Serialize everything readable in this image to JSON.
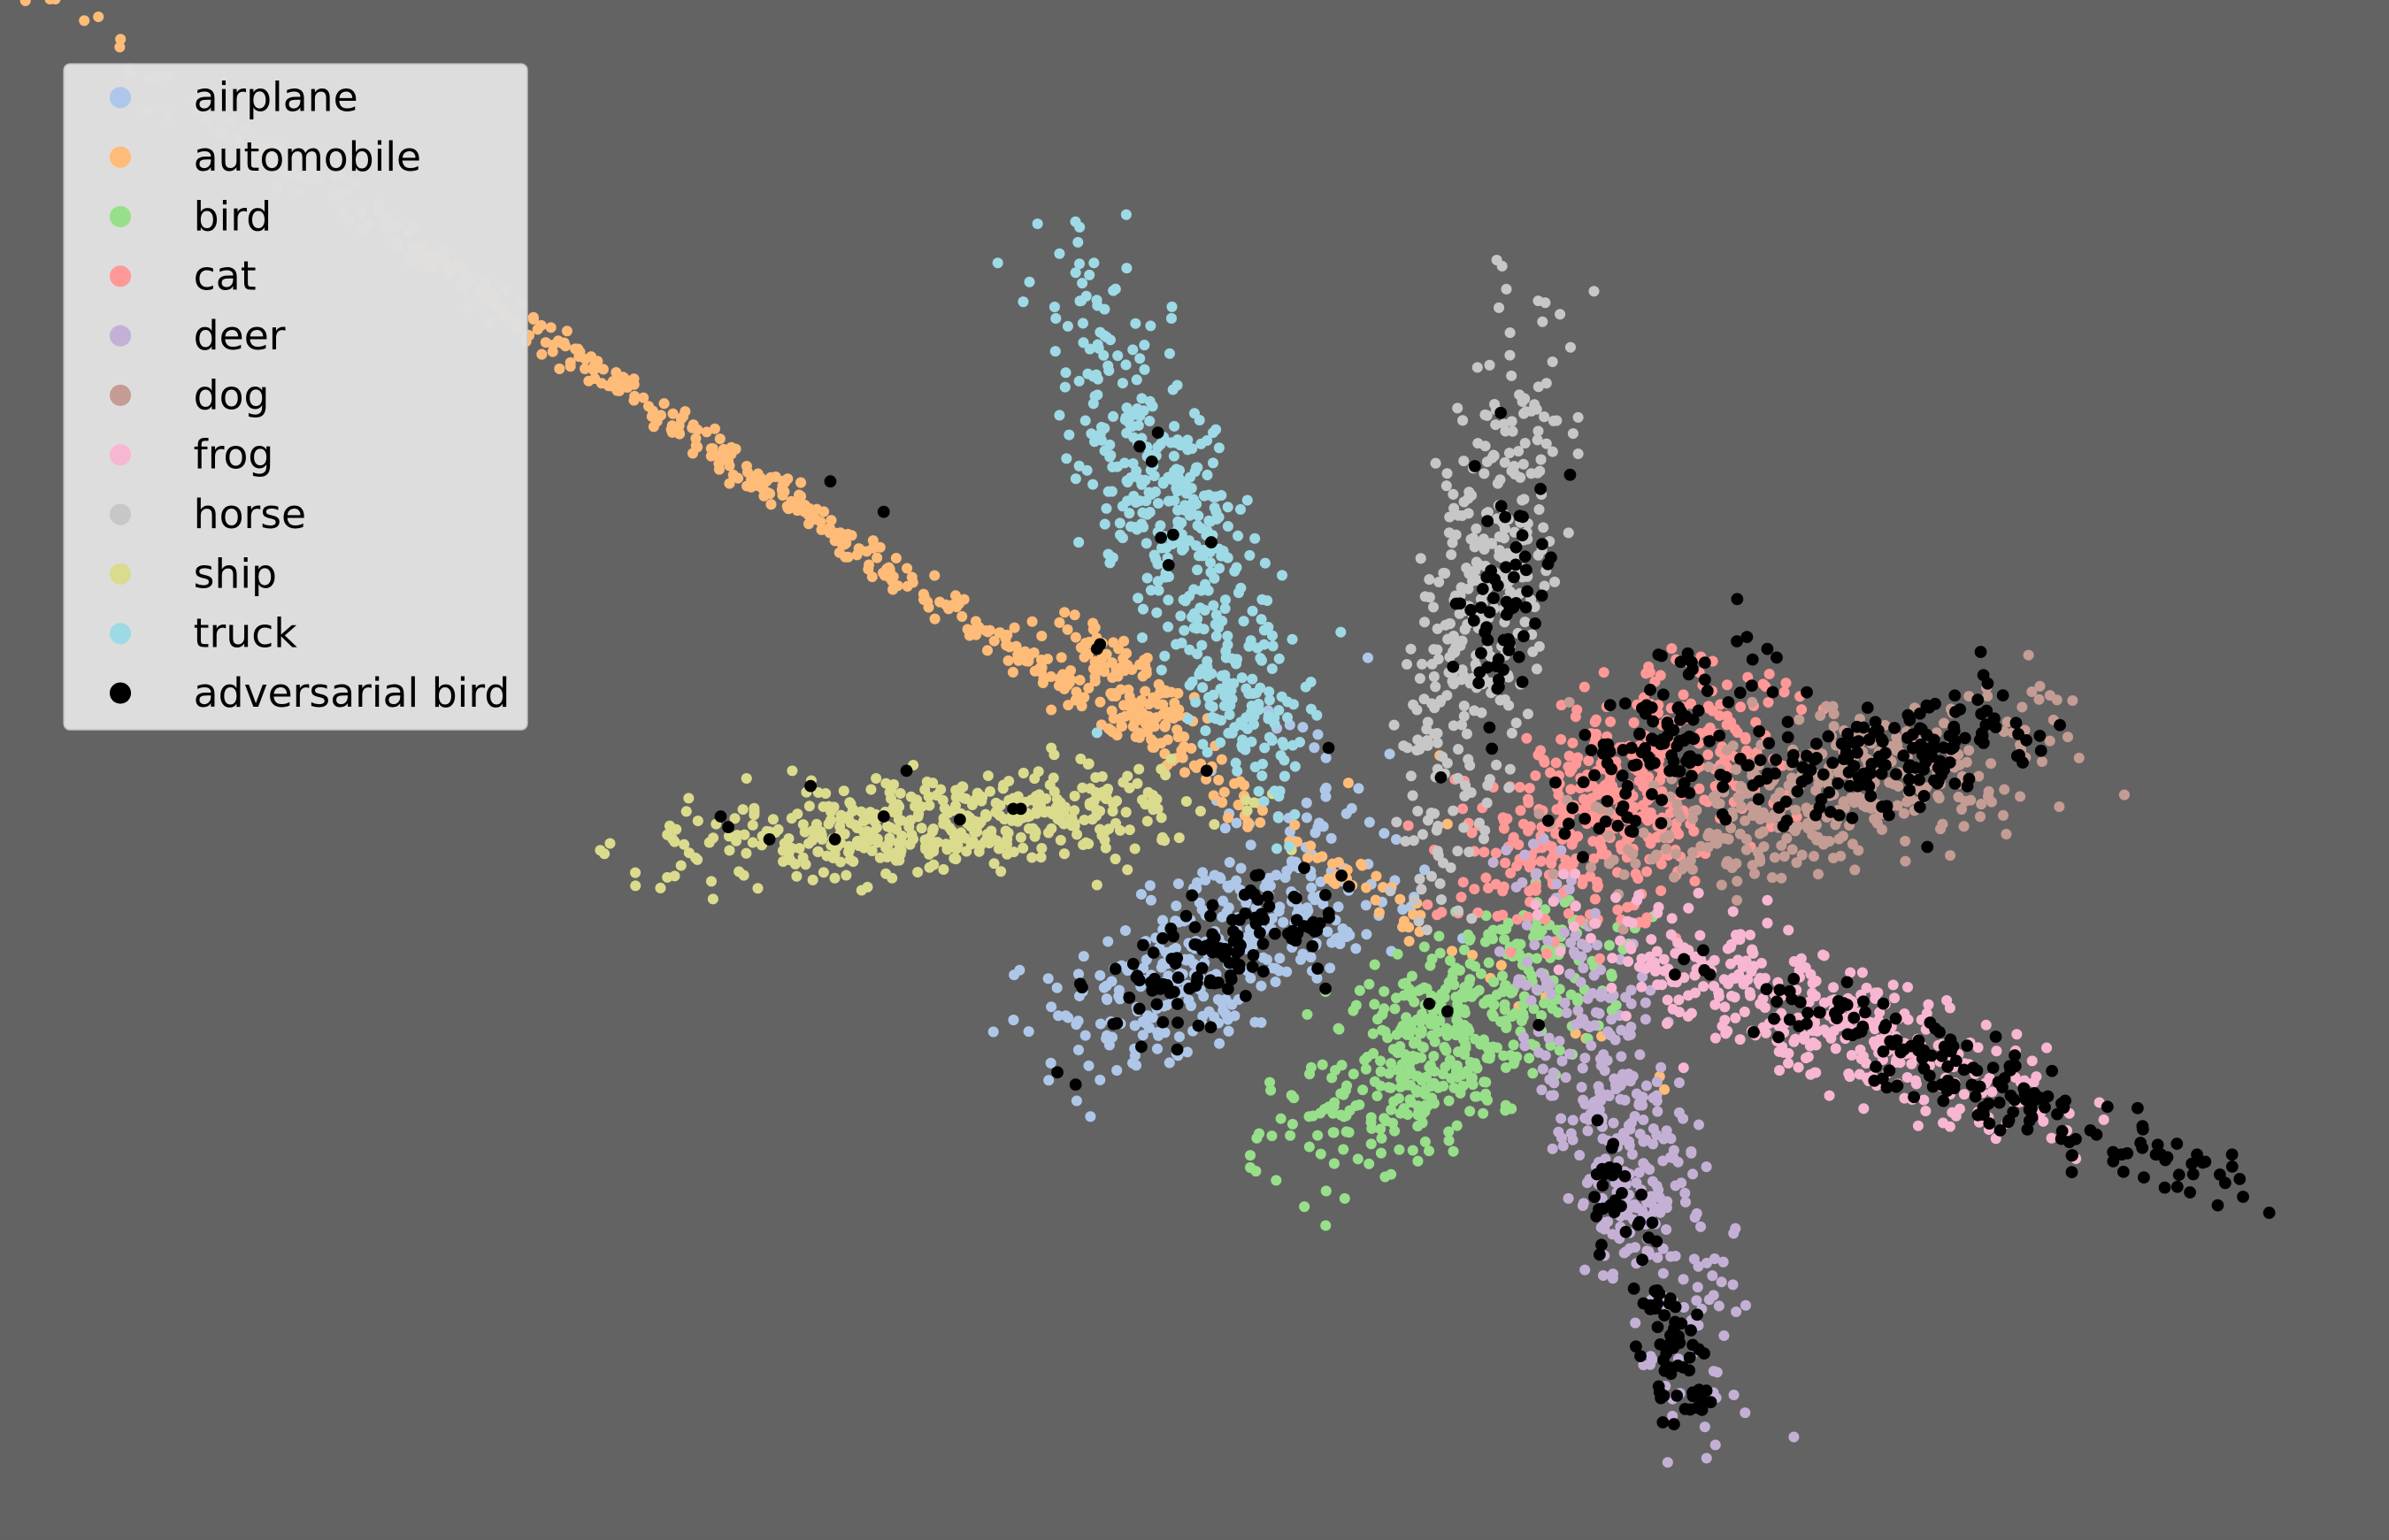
{
  "chart_data": {
    "type": "scatter",
    "title": "",
    "xlabel": "",
    "ylabel": "",
    "axes_visible": false,
    "grid": false,
    "background": "#636363",
    "xlim": [
      0,
      1568
    ],
    "ylim": [
      1011,
      0
    ],
    "legend": {
      "placement": "top-left",
      "background": "#e1e1e1",
      "entries": [
        "airplane",
        "automobile",
        "bird",
        "cat",
        "deer",
        "dog",
        "frog",
        "horse",
        "ship",
        "truck",
        "adversarial bird"
      ]
    },
    "series": [
      {
        "name": "airplane",
        "color": "#aec7e8",
        "marker_size": 7,
        "clusters": [
          {
            "center": [
              800,
              385
            ],
            "angle": 28,
            "sx": 65,
            "sy": 26,
            "n": 300
          },
          {
            "center": [
              840,
              470
            ],
            "angle": 60,
            "sx": 55,
            "sy": 22,
            "n": 40
          }
        ],
        "points": [
          [
            722,
            302
          ],
          [
            745,
            318
          ],
          [
            730,
            330
          ],
          [
            690,
            350
          ],
          [
            875,
            432
          ],
          [
            905,
            410
          ],
          [
            935,
            440
          ],
          [
            960,
            395
          ],
          [
            865,
            468
          ],
          [
            820,
            470
          ],
          [
            795,
            505
          ]
        ]
      },
      {
        "name": "automobile",
        "color": "#ffbb78",
        "marker_size": 7,
        "clusters": [
          {
            "center": [
              470,
              715
            ],
            "angle": -34,
            "sx": 330,
            "sy": 6,
            "n": 500
          },
          {
            "center": [
              750,
              555
            ],
            "angle": -40,
            "sx": 40,
            "sy": 12,
            "n": 120
          }
        ],
        "points": [
          [
            97,
            938
          ],
          [
            110,
            935
          ],
          [
            167,
            902
          ],
          [
            182,
            888
          ],
          [
            196,
            885
          ],
          [
            885,
            497
          ],
          [
            945,
            515
          ],
          [
            950,
            470
          ],
          [
            690,
            545
          ]
        ]
      },
      {
        "name": "bird",
        "color": "#98df8a",
        "marker_size": 7,
        "clusters": [
          {
            "center": [
              950,
              330
            ],
            "angle": 35,
            "sx": 65,
            "sy": 28,
            "n": 450
          }
        ],
        "points": [
          [
            913,
            240
          ],
          [
            900,
            260
          ],
          [
            880,
            293
          ],
          [
            858,
            345
          ],
          [
            870,
            360
          ],
          [
            1045,
            380
          ],
          [
            1058,
            370
          ],
          [
            1030,
            420
          ],
          [
            1000,
            410
          ],
          [
            1012,
            400
          ],
          [
            965,
            395
          ]
        ]
      },
      {
        "name": "cat",
        "color": "#ff9896",
        "marker_size": 7,
        "clusters": [
          {
            "center": [
              1065,
              485
            ],
            "angle": 35,
            "sx": 60,
            "sy": 32,
            "n": 450
          }
        ],
        "points": [
          [
            1080,
            405
          ],
          [
            1100,
            395
          ],
          [
            1000,
            470
          ],
          [
            990,
            455
          ],
          [
            960,
            480
          ],
          [
            1100,
            578
          ],
          [
            1040,
            560
          ],
          [
            1035,
            545
          ]
        ]
      },
      {
        "name": "deer",
        "color": "#c5b0d5",
        "marker_size": 7,
        "clusters": [
          {
            "center": [
              1068,
              255
            ],
            "angle": -72,
            "sx": 90,
            "sy": 22,
            "n": 350
          }
        ],
        "points": [
          [
            1000,
            330
          ],
          [
            1010,
            320
          ],
          [
            1020,
            300
          ],
          [
            1110,
            255
          ],
          [
            1120,
            245
          ],
          [
            1095,
            340
          ]
        ]
      },
      {
        "name": "dog",
        "color": "#c49c94",
        "marker_size": 7,
        "clusters": [
          {
            "center": [
              1200,
              488
            ],
            "angle": 15,
            "sx": 80,
            "sy": 25,
            "n": 350
          }
        ],
        "points": [
          [
            1275,
            470
          ],
          [
            1290,
            485
          ],
          [
            1130,
            430
          ],
          [
            1140,
            420
          ],
          [
            1150,
            550
          ],
          [
            1030,
            550
          ]
        ]
      },
      {
        "name": "frog",
        "color": "#f7b6d2",
        "marker_size": 7,
        "clusters": [
          {
            "center": [
              1190,
              345
            ],
            "angle": -22,
            "sx": 85,
            "sy": 20,
            "n": 350
          }
        ],
        "points": [
          [
            1080,
            375
          ],
          [
            1070,
            390
          ],
          [
            1105,
            310
          ],
          [
            1160,
            405
          ],
          [
            1160,
            420
          ],
          [
            1250,
            290
          ]
        ]
      },
      {
        "name": "horse",
        "color": "#c7c7c7",
        "marker_size": 7,
        "clusters": [
          {
            "center": [
              975,
              620
            ],
            "angle": 80,
            "sx": 95,
            "sy": 20,
            "n": 350
          }
        ],
        "points": [
          [
            960,
            735
          ],
          [
            982,
            742
          ],
          [
            970,
            720
          ],
          [
            1012,
            650
          ],
          [
            915,
            535
          ],
          [
            930,
            545
          ],
          [
            950,
            510
          ],
          [
            940,
            575
          ]
        ]
      },
      {
        "name": "ship",
        "color": "#dbdb8d",
        "marker_size": 7,
        "clusters": [
          {
            "center": [
              620,
              470
            ],
            "angle": 5,
            "sx": 95,
            "sy": 17,
            "n": 450
          }
        ],
        "points": [
          [
            438,
            435
          ],
          [
            438,
            463
          ],
          [
            452,
            487
          ],
          [
            470,
            470
          ],
          [
            490,
            500
          ],
          [
            520,
            505
          ],
          [
            575,
            500
          ],
          [
            690,
            520
          ],
          [
            760,
            480
          ],
          [
            720,
            430
          ],
          [
            740,
            440
          ]
        ]
      },
      {
        "name": "truck",
        "color": "#9edae5",
        "marker_size": 7,
        "clusters": [
          {
            "center": [
              770,
              670
            ],
            "angle": -68,
            "sx": 95,
            "sy": 22,
            "n": 380
          },
          {
            "center": [
              812,
              548
            ],
            "angle": -60,
            "sx": 28,
            "sy": 12,
            "n": 60
          }
        ],
        "points": [
          [
            693,
            802
          ],
          [
            706,
            832
          ],
          [
            725,
            808
          ],
          [
            880,
            596
          ],
          [
            857,
            560
          ],
          [
            845,
            540
          ],
          [
            830,
            520
          ],
          [
            720,
            530
          ],
          [
            708,
            655
          ],
          [
            700,
            710
          ]
        ]
      },
      {
        "name": "adversarial bird",
        "color": "#000000",
        "marker_size": 8,
        "clusters": [
          {
            "center": [
              800,
              385
            ],
            "angle": 28,
            "sx": 45,
            "sy": 18,
            "n": 130
          },
          {
            "center": [
              1098,
              128
            ],
            "angle": -72,
            "sx": 30,
            "sy": 12,
            "n": 60
          },
          {
            "center": [
              1062,
              225
            ],
            "angle": -72,
            "sx": 22,
            "sy": 10,
            "n": 30
          },
          {
            "center": [
              1300,
              300
            ],
            "angle": -22,
            "sx": 90,
            "sy": 14,
            "n": 170
          },
          {
            "center": [
              1240,
              515
            ],
            "angle": 15,
            "sx": 55,
            "sy": 18,
            "n": 160
          },
          {
            "center": [
              1095,
              525
            ],
            "angle": 40,
            "sx": 40,
            "sy": 20,
            "n": 110
          },
          {
            "center": [
              985,
              600
            ],
            "angle": 80,
            "sx": 45,
            "sy": 14,
            "n": 60
          }
        ],
        "points": [
          [
            694,
            307
          ],
          [
            706,
            299
          ],
          [
            1442,
            253
          ],
          [
            1465,
            253
          ],
          [
            1470,
            237
          ],
          [
            1415,
            253
          ],
          [
            1120,
            98
          ],
          [
            1106,
            86
          ],
          [
            1300,
            583
          ],
          [
            1330,
            525
          ],
          [
            1352,
            535
          ],
          [
            1265,
            455
          ],
          [
            1160,
            585
          ],
          [
            1140,
            590
          ],
          [
            968,
            705
          ],
          [
            985,
            740
          ],
          [
            1012,
            620
          ],
          [
            1018,
            645
          ],
          [
            580,
            475
          ],
          [
            595,
            505
          ],
          [
            630,
            473
          ],
          [
            665,
            480
          ],
          [
            670,
            480
          ],
          [
            548,
            460
          ],
          [
            505,
            460
          ],
          [
            478,
            468
          ],
          [
            473,
            475
          ],
          [
            532,
            495
          ],
          [
            720,
            585
          ],
          [
            722,
            588
          ],
          [
            580,
            675
          ],
          [
            545,
            695
          ],
          [
            767,
            640
          ],
          [
            762,
            658
          ],
          [
            795,
            655
          ],
          [
            770,
            660
          ],
          [
            756,
            708
          ],
          [
            760,
            727
          ],
          [
            748,
            718
          ],
          [
            872,
            520
          ],
          [
            792,
            505
          ],
          [
            938,
            352
          ],
          [
            950,
            347
          ],
          [
            1010,
            338
          ],
          [
            1055,
            510
          ],
          [
            870,
            362
          ],
          [
            1055,
            485
          ]
        ]
      }
    ]
  }
}
